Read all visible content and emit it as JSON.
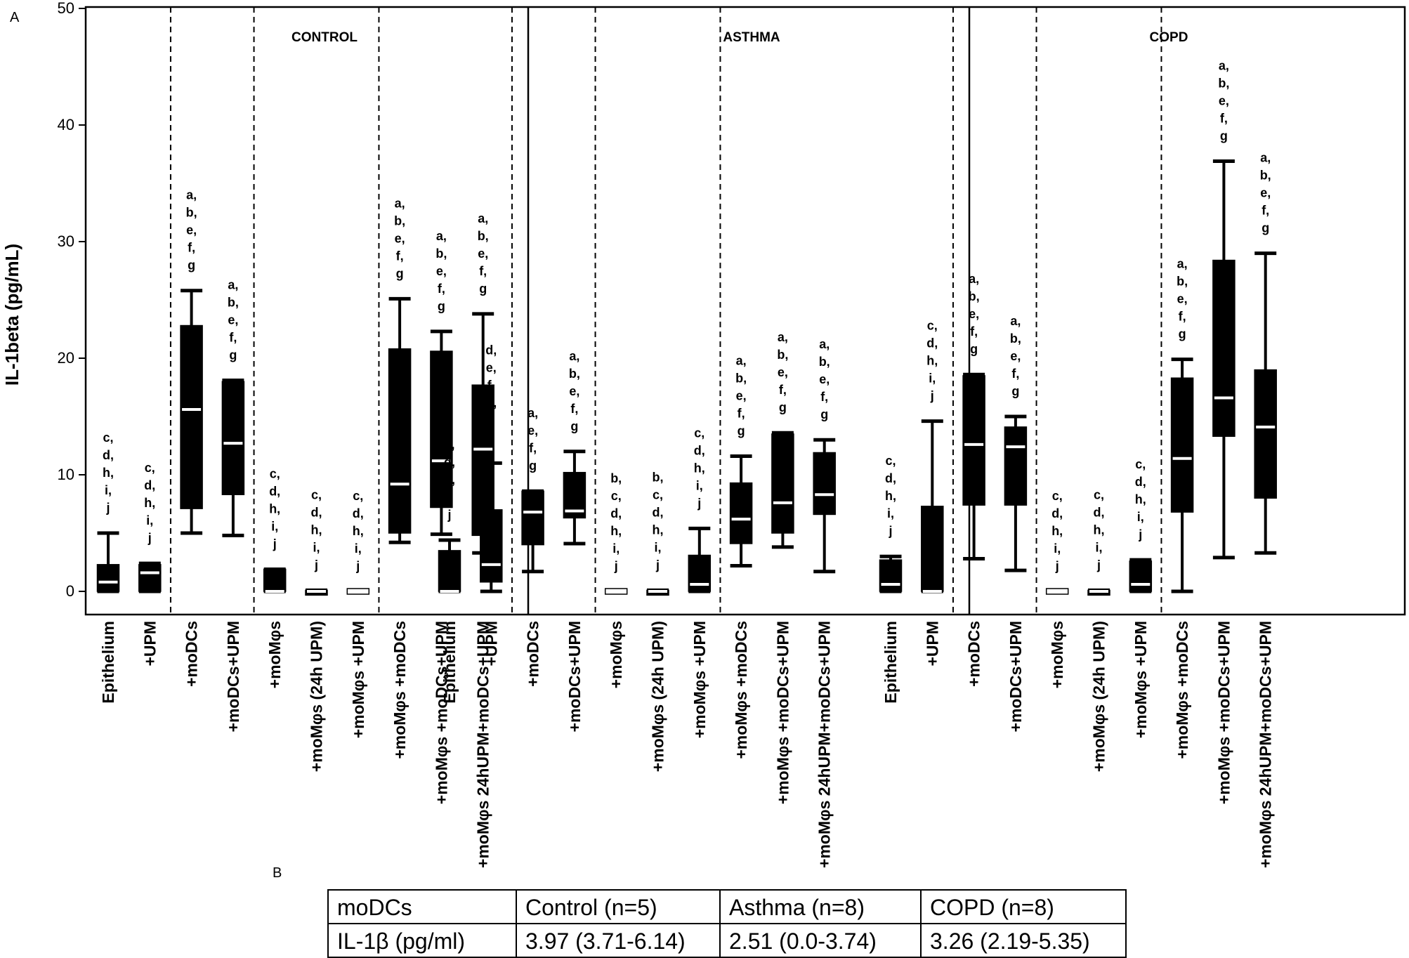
{
  "panel_a_label": "A",
  "panel_b_label": "B",
  "chart_data": {
    "type": "box",
    "ylabel": "IL-1beta (pg/mL)",
    "ylim": [
      0,
      50
    ],
    "yticks": [
      0,
      10,
      20,
      30,
      40,
      50
    ],
    "groups": [
      {
        "name": "CONTROL",
        "categories": [
          "Epithelium",
          "+UPM",
          "+moDCs",
          "+moDCs+UPM",
          "+moMφs",
          "+moMφs (24h UPM)",
          "+moMφs +UPM",
          "+moMφs +moDCs",
          "+moMφs +moDCs+UPM",
          "+moMφs 24hUPM+moDCs+UPM"
        ],
        "boxes": [
          {
            "min": 0,
            "q1": 0,
            "median": 0.8,
            "q3": 2.3,
            "max": 5.0,
            "sig": "c,|d,|h,|i,|j"
          },
          {
            "min": 0,
            "q1": 0,
            "median": 1.6,
            "q3": 2.3,
            "max": 2.4,
            "sig": "c,|d,|h,|i,|j"
          },
          {
            "min": 5.0,
            "q1": 7.1,
            "median": 15.6,
            "q3": 22.8,
            "max": 25.8,
            "sig": "a,|b,|e,|f,|g"
          },
          {
            "min": 4.8,
            "q1": 8.3,
            "median": 12.7,
            "q3": 18.0,
            "max": 18.1,
            "sig": "a,|b,|e,|f,|g"
          },
          {
            "min": 0,
            "q1": 0,
            "median": 0,
            "q3": 1.9,
            "max": 1.9,
            "sig": "c,|d,|h,|i,|j"
          },
          {
            "min": 0,
            "q1": 0,
            "median": 0,
            "q3": 0.1,
            "max": 0.1,
            "sig": "c,|d,|h,|i,|j"
          },
          {
            "min": 0,
            "q1": 0,
            "median": 0,
            "q3": 0,
            "max": 0,
            "sig": "c,|d,|h,|i,|j"
          },
          {
            "min": 4.2,
            "q1": 5.0,
            "median": 9.2,
            "q3": 20.8,
            "max": 25.1,
            "sig": "a,|b,|e,|f,|g"
          },
          {
            "min": 4.9,
            "q1": 7.2,
            "median": 11.2,
            "q3": 20.6,
            "max": 22.3,
            "sig": "a,|b,|e,|f,|g"
          },
          {
            "min": 3.3,
            "q1": 4.8,
            "median": 12.2,
            "q3": 17.7,
            "max": 23.8,
            "sig": "a,|b,|e,|f,|g"
          }
        ]
      },
      {
        "name": "ASTHMA",
        "categories": [
          "Epithelium",
          "+UPM",
          "+moDCs",
          "+moDCs+UPM",
          "+moMφs",
          "+moMφs (24h UPM)",
          "+moMφs +UPM",
          "+moMφs +moDCs",
          "+moMφs +moDCs+UPM",
          "+moMφs 24hUPM+moDCs+UPM"
        ],
        "boxes": [
          {
            "min": 0,
            "q1": 0,
            "median": 0,
            "q3": 3.5,
            "max": 4.4,
            "sig": "c,|d,|h,|i,|j"
          },
          {
            "min": 0,
            "q1": 0.8,
            "median": 2.3,
            "q3": 7.0,
            "max": 11.0,
            "sig": "d,|e,|f,|h,|i,|j"
          },
          {
            "min": 1.7,
            "q1": 4.0,
            "median": 6.8,
            "q3": 8.6,
            "max": 8.6,
            "sig": "a,|e,|f,|g"
          },
          {
            "min": 4.1,
            "q1": 6.3,
            "median": 6.9,
            "q3": 10.2,
            "max": 12.0,
            "sig": "a,|b,|e,|f,|g"
          },
          {
            "min": 0,
            "q1": 0,
            "median": 0,
            "q3": 0,
            "max": 0,
            "sig": "b,|c,|d,|h,|i,|j"
          },
          {
            "min": 0,
            "q1": 0,
            "median": 0,
            "q3": 0.1,
            "max": 0.1,
            "sig": "b,|c,|d,|h,|i,|j"
          },
          {
            "min": 0,
            "q1": 0,
            "median": 0.6,
            "q3": 3.1,
            "max": 5.4,
            "sig": "c,|d,|h,|i,|j"
          },
          {
            "min": 2.2,
            "q1": 4.1,
            "median": 6.2,
            "q3": 9.3,
            "max": 11.6,
            "sig": "a,|b,|e,|f,|g"
          },
          {
            "min": 3.8,
            "q1": 5.0,
            "median": 7.6,
            "q3": 13.5,
            "max": 13.6,
            "sig": "a,|b,|e,|f,|g"
          },
          {
            "min": 1.7,
            "q1": 6.6,
            "median": 8.3,
            "q3": 11.9,
            "max": 13.0,
            "sig": "a,|b,|e,|f,|g"
          }
        ]
      },
      {
        "name": "COPD",
        "categories": [
          "Epithelium",
          "+UPM",
          "+moDCs",
          "+moDCs+UPM",
          "+moMφs",
          "+moMφs (24h UPM)",
          "+moMφs +UPM",
          "+moMφs +moDCs",
          "+moMφs +moDCs+UPM",
          "+moMφs 24hUPM+moDCs+UPM"
        ],
        "boxes": [
          {
            "min": 0,
            "q1": 0,
            "median": 0.6,
            "q3": 2.7,
            "max": 3.0,
            "sig": "c,|d,|h,|i,|j"
          },
          {
            "min": 0,
            "q1": 0,
            "median": 0,
            "q3": 7.3,
            "max": 14.6,
            "sig": "c,|d,|h,|i,|j"
          },
          {
            "min": 2.8,
            "q1": 7.4,
            "median": 12.6,
            "q3": 18.5,
            "max": 18.6,
            "sig": "a,|b,|e,|f,|g"
          },
          {
            "min": 1.8,
            "q1": 7.4,
            "median": 12.4,
            "q3": 14.1,
            "max": 15.0,
            "sig": "a,|b,|e,|f,|g"
          },
          {
            "min": 0,
            "q1": 0,
            "median": 0,
            "q3": 0,
            "max": 0,
            "sig": "c,|d,|h,|i,|j"
          },
          {
            "min": 0,
            "q1": 0,
            "median": 0,
            "q3": 0.1,
            "max": 0.1,
            "sig": "c,|d,|h,|i,|j"
          },
          {
            "min": 0,
            "q1": 0,
            "median": 0.6,
            "q3": 2.6,
            "max": 2.7,
            "sig": "c,|d,|h,|i,|j"
          },
          {
            "min": 0,
            "q1": 6.8,
            "median": 11.4,
            "q3": 18.3,
            "max": 19.9,
            "sig": "a,|b,|e,|f,|g"
          },
          {
            "min": 2.9,
            "q1": 13.3,
            "median": 16.6,
            "q3": 28.4,
            "max": 36.9,
            "sig": "a,|b,|e,|f,|g"
          },
          {
            "min": 3.3,
            "q1": 8.0,
            "median": 14.1,
            "q3": 19.0,
            "max": 29.0,
            "sig": "a,|b,|e,|f,|g"
          }
        ]
      }
    ]
  },
  "table_b": {
    "header": [
      "moDCs",
      "Control (n=5)",
      "Asthma (n=8)",
      "COPD (n=8)"
    ],
    "row": [
      "IL-1β (pg/ml)",
      "3.97 (3.71-6.14)",
      "2.51 (0.0-3.74)",
      "3.26 (2.19-5.35)"
    ]
  }
}
